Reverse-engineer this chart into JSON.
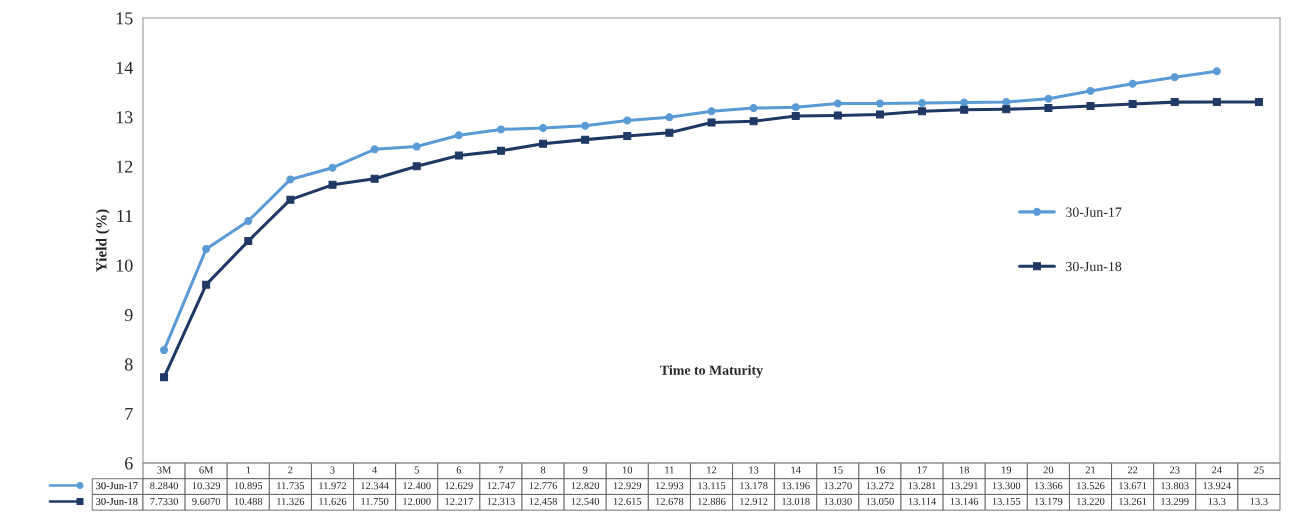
{
  "chart_data": {
    "type": "line",
    "xlabel": "Time to Maturity",
    "ylabel": "Yield (%)",
    "categories": [
      "3M",
      "6M",
      "1",
      "2",
      "3",
      "4",
      "5",
      "6",
      "7",
      "8",
      "9",
      "10",
      "11",
      "12",
      "13",
      "14",
      "15",
      "16",
      "17",
      "18",
      "19",
      "20",
      "21",
      "22",
      "23",
      "24",
      "25"
    ],
    "series": [
      {
        "name": "30-Jun-17",
        "color": "#5b9bd5",
        "marker": "circle",
        "values": [
          8.284,
          10.329,
          10.895,
          11.735,
          11.972,
          12.344,
          12.4,
          12.629,
          12.747,
          12.776,
          12.82,
          12.929,
          12.993,
          13.115,
          13.178,
          13.196,
          13.27,
          13.272,
          13.281,
          13.291,
          13.3,
          13.366,
          13.526,
          13.671,
          13.803,
          13.924,
          null
        ],
        "value_labels": [
          "8.2840",
          "10.329",
          "10.895",
          "11.735",
          "11.972",
          "12.344",
          "12.400",
          "12.629",
          "12.747",
          "12.776",
          "12.820",
          "12.929",
          "12.993",
          "13.115",
          "13.178",
          "13.196",
          "13.270",
          "13.272",
          "13.281",
          "13.291",
          "13.300",
          "13.366",
          "13.526",
          "13.671",
          "13.803",
          "13.924",
          null
        ]
      },
      {
        "name": "30-Jun-18",
        "color": "#1f3864",
        "marker": "square",
        "values": [
          7.733,
          9.607,
          10.488,
          11.326,
          11.626,
          11.75,
          12.0,
          12.217,
          12.313,
          12.458,
          12.54,
          12.615,
          12.678,
          12.886,
          12.912,
          13.018,
          13.03,
          13.05,
          13.114,
          13.146,
          13.155,
          13.179,
          13.22,
          13.261,
          13.299,
          13.3,
          13.3
        ],
        "value_labels": [
          "7.7330",
          "9.6070",
          "10.488",
          "11.326",
          "11.626",
          "11.750",
          "12.000",
          "12.217",
          "12.313",
          "12.458",
          "12.540",
          "12.615",
          "12.678",
          "12.886",
          "12.912",
          "13.018",
          "13.030",
          "13.050",
          "13.114",
          "13.146",
          "13.155",
          "13.179",
          "13.220",
          "13.261",
          "13.299",
          "13.3",
          "13.3"
        ]
      }
    ],
    "ylim": [
      6,
      15
    ],
    "yticks": [
      6,
      7,
      8,
      9,
      10,
      11,
      12,
      13,
      14,
      15
    ],
    "grid": false,
    "legend": "right",
    "line_style": "solid"
  }
}
